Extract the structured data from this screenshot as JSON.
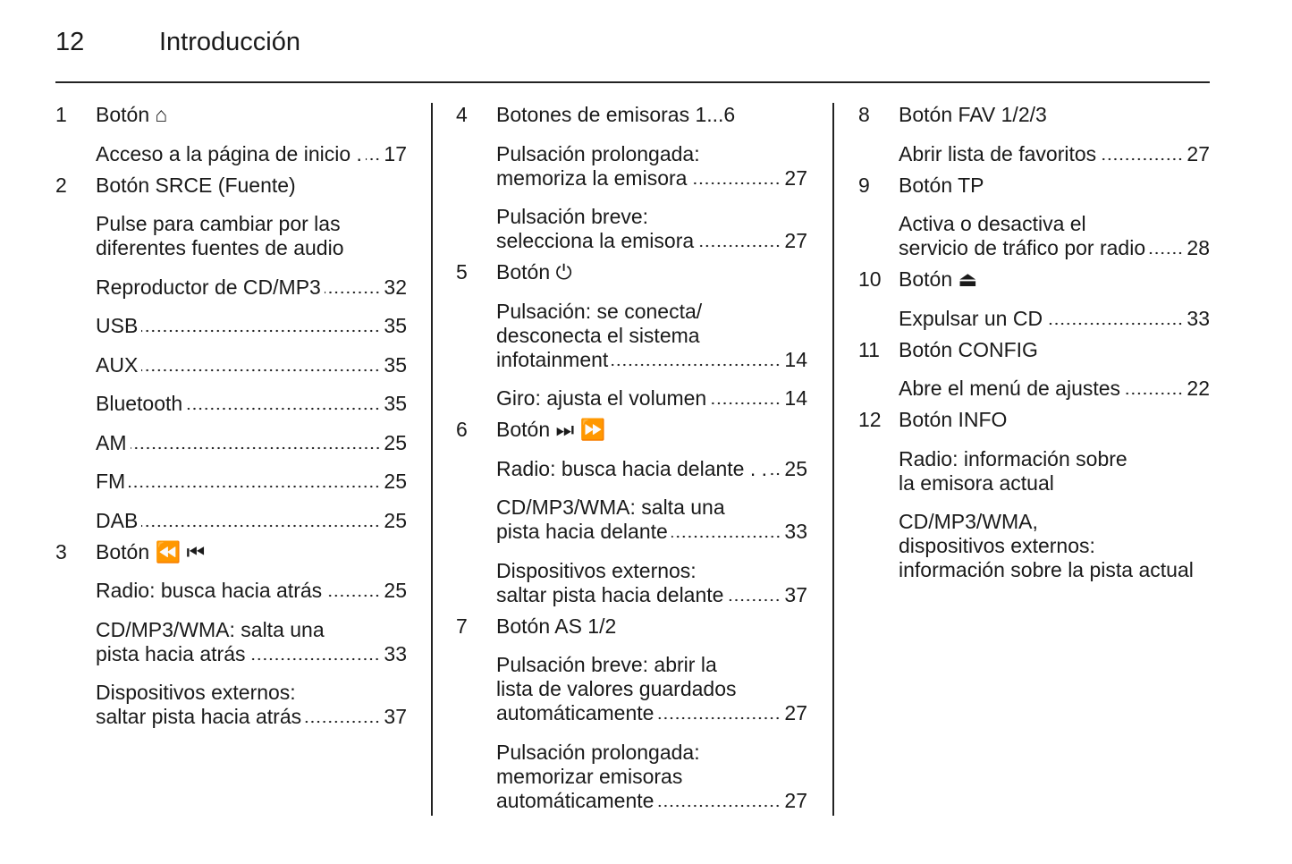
{
  "header": {
    "page_number": "12",
    "title": "Introducción"
  },
  "columns": [
    {
      "items": [
        {
          "number": "1",
          "title": "Botón ⌂",
          "entries": [
            {
              "lines": [
                "Acceso a la página de inicio ."
              ],
              "page": 17
            }
          ]
        },
        {
          "number": "2",
          "title": "Botón SRCE (Fuente)",
          "entries": [
            {
              "lines": [
                "Pulse para cambiar por las",
                "diferentes fuentes de audio"
              ]
            },
            {
              "lines": [
                "Reproductor de CD/MP3"
              ],
              "page": 32
            },
            {
              "lines": [
                "USB"
              ],
              "page": 35
            },
            {
              "lines": [
                "AUX"
              ],
              "page": 35
            },
            {
              "lines": [
                "Bluetooth"
              ],
              "page": 35
            },
            {
              "lines": [
                "AM"
              ],
              "page": 25
            },
            {
              "lines": [
                "FM"
              ],
              "page": 25
            },
            {
              "lines": [
                "DAB"
              ],
              "page": 25
            }
          ]
        },
        {
          "number": "3",
          "title": "Botón ⏪ ⏮",
          "entries": [
            {
              "lines": [
                "Radio: busca hacia atrás"
              ],
              "page": 25
            },
            {
              "lines": [
                "CD/MP3/WMA: salta una",
                "pista hacia atrás"
              ],
              "page": 33
            },
            {
              "lines": [
                "Dispositivos externos:",
                "saltar pista hacia atrás"
              ],
              "page": 37
            }
          ]
        }
      ]
    },
    {
      "items": [
        {
          "number": "4",
          "title": "Botones de emisoras  1...6",
          "entries": [
            {
              "lines": [
                "Pulsación prolongada:",
                "memoriza la emisora"
              ],
              "page": 27
            },
            {
              "lines": [
                "Pulsación breve:",
                "selecciona la emisora"
              ],
              "page": 27
            }
          ]
        },
        {
          "number": "5",
          "title": "Botón ⏻",
          "entries": [
            {
              "lines": [
                "Pulsación: se conecta/",
                "desconecta el sistema",
                "infotainment"
              ],
              "page": 14
            },
            {
              "lines": [
                "Giro: ajusta el volumen"
              ],
              "page": 14
            }
          ]
        },
        {
          "number": "6",
          "title": "Botón ⏭ ⏩",
          "entries": [
            {
              "lines": [
                "Radio: busca hacia delante . ."
              ],
              "page": 25
            },
            {
              "lines": [
                "CD/MP3/WMA: salta una",
                "pista hacia delante"
              ],
              "page": 33
            },
            {
              "lines": [
                "Dispositivos externos:",
                "saltar pista hacia delante"
              ],
              "page": 37
            }
          ]
        },
        {
          "number": "7",
          "title": "Botón AS 1/2",
          "entries": [
            {
              "lines": [
                "Pulsación breve: abrir la",
                "lista de valores guardados",
                "automáticamente"
              ],
              "page": 27
            },
            {
              "lines": [
                "Pulsación prolongada:",
                "memorizar emisoras",
                "automáticamente"
              ],
              "page": 27
            }
          ]
        }
      ]
    },
    {
      "items": [
        {
          "number": "8",
          "title": "Botón FAV 1/2/3",
          "entries": [
            {
              "lines": [
                "Abrir lista de favoritos"
              ],
              "page": 27
            }
          ]
        },
        {
          "number": "9",
          "title": "Botón TP",
          "entries": [
            {
              "lines": [
                "Activa o desactiva el",
                "servicio de tráfico por radio"
              ],
              "page": 28
            }
          ]
        },
        {
          "number": "10",
          "title": "Botón ⏏",
          "entries": [
            {
              "lines": [
                "Expulsar un CD"
              ],
              "page": 33
            }
          ]
        },
        {
          "number": "11",
          "title": "Botón CONFIG",
          "entries": [
            {
              "lines": [
                "Abre el menú de ajustes"
              ],
              "page": 22
            }
          ]
        },
        {
          "number": "12",
          "title": "Botón INFO",
          "entries": [
            {
              "lines": [
                "Radio: información sobre",
                "la emisora actual"
              ]
            },
            {
              "lines": [
                "CD/MP3/WMA,",
                "dispositivos externos:",
                "información sobre la pista actual"
              ]
            }
          ]
        }
      ]
    }
  ]
}
